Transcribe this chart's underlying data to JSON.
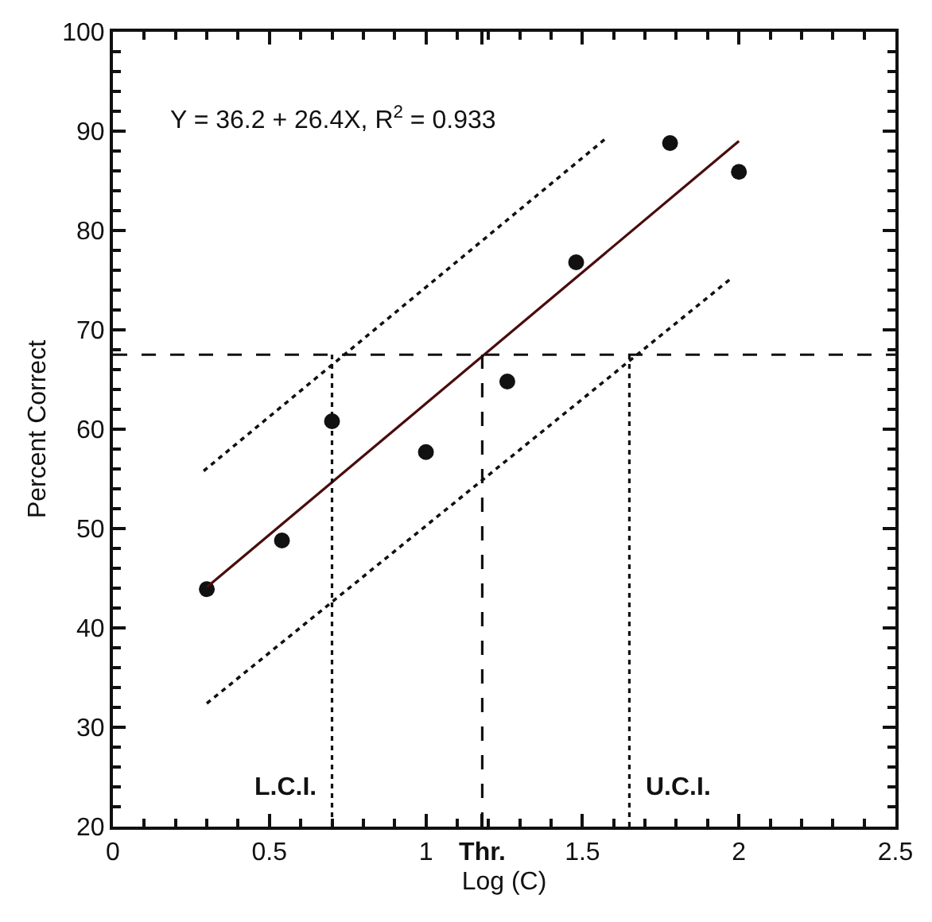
{
  "chart_data": {
    "type": "scatter",
    "xlabel": "Log (C)",
    "ylabel": "Percent Correct",
    "xlim": [
      0,
      2.5
    ],
    "ylim": [
      20,
      100
    ],
    "xticks": [
      0,
      0.5,
      1,
      {
        "value": 1.18,
        "label": "Thr."
      },
      1.5,
      2,
      2.5
    ],
    "yticks": [
      20,
      30,
      40,
      50,
      60,
      70,
      80,
      90,
      100
    ],
    "grid": false,
    "annotations": [
      "Y = 36.2 + 26.4X, R$^{2}$ = 0.933"
    ],
    "series": [
      {
        "color": "#111111",
        "marker": "circle",
        "x": [
          0.3,
          0.54,
          0.7,
          1.0,
          1.26,
          1.48,
          1.78,
          2.0
        ],
        "values": [
          43.9,
          48.8,
          60.8,
          57.7,
          64.8,
          76.8,
          88.8,
          85.9
        ]
      },
      {
        "type": "line",
        "color": "#4a0c0c",
        "line_style": "solid",
        "marker": "none",
        "x": [
          0.3,
          2.0
        ],
        "values": [
          44.1,
          89.0
        ]
      },
      {
        "type": "line",
        "color": "#111111",
        "line_style": "dotted",
        "marker": "none",
        "x": [
          0.29,
          1.58
        ],
        "values": [
          55.8,
          89.4
        ]
      },
      {
        "type": "line",
        "color": "#111111",
        "line_style": "dotted",
        "marker": "none",
        "x": [
          0.3,
          1.98
        ],
        "values": [
          32.4,
          75.3
        ]
      }
    ],
    "ref_lines": [
      {
        "axis": "y",
        "value": 67.5,
        "line_style": "dashed",
        "color": "#111111"
      },
      {
        "axis": "x",
        "value": 1.18,
        "line_style": "dashed",
        "color": "#111111"
      },
      {
        "axis": "x",
        "value": 0.7,
        "label": "L.C.I.",
        "line_style": "dotted",
        "color": "#111111"
      },
      {
        "axis": "x",
        "value": 1.65,
        "label": "U.C.I.",
        "line_style": "dotted",
        "color": "#111111"
      }
    ]
  }
}
